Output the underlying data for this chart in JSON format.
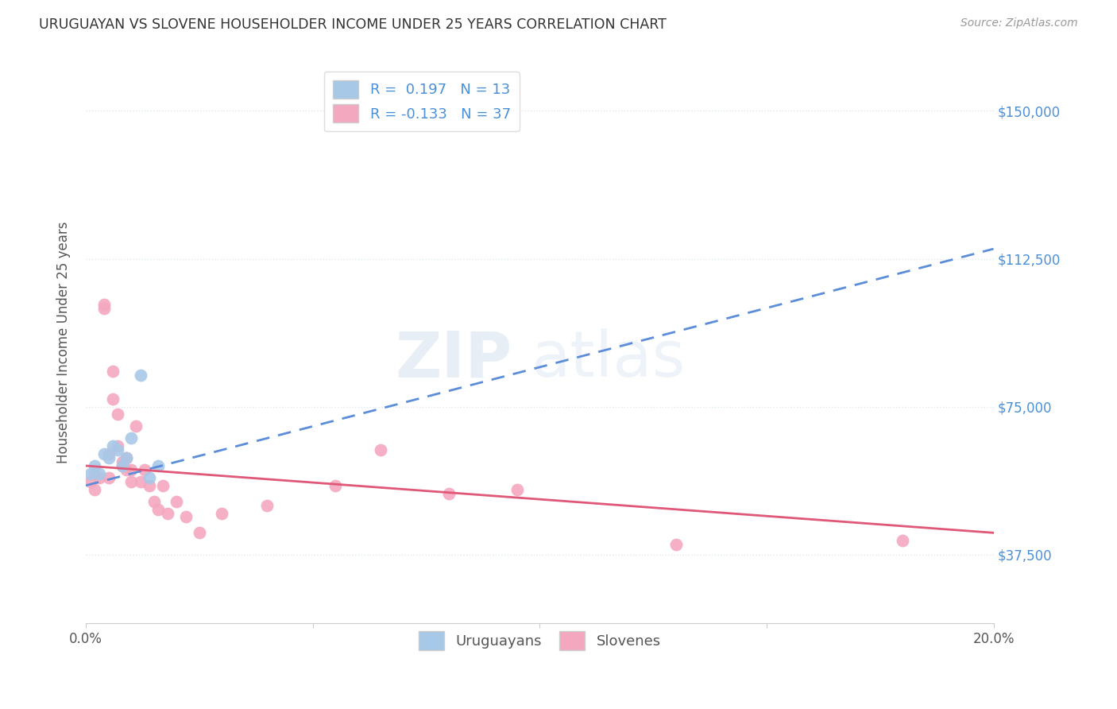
{
  "title": "URUGUAYAN VS SLOVENE HOUSEHOLDER INCOME UNDER 25 YEARS CORRELATION CHART",
  "source": "Source: ZipAtlas.com",
  "ylabel": "Householder Income Under 25 years",
  "x_min": 0.0,
  "x_max": 0.2,
  "y_min": 20000,
  "y_max": 162500,
  "x_ticks": [
    0.0,
    0.05,
    0.1,
    0.15,
    0.2
  ],
  "x_tick_labels": [
    "0.0%",
    "",
    "",
    "",
    "20.0%"
  ],
  "y_ticks": [
    37500,
    75000,
    112500,
    150000
  ],
  "y_tick_labels": [
    "$37,500",
    "$75,000",
    "$112,500",
    "$150,000"
  ],
  "r_uruguayan": 0.197,
  "n_uruguayan": 13,
  "r_slovene": -0.133,
  "n_slovene": 37,
  "color_uruguayan": "#a8c8e8",
  "color_slovene": "#f4a8c0",
  "line_color_uruguayan": "#5b8dd9",
  "line_color_slovene": "#e05878",
  "tick_color": "#4a90d9",
  "grid_color": "#dde8f0",
  "background_color": "#ffffff",
  "watermark_zip": "ZIP",
  "watermark_atlas": "atlas",
  "uruguayan_x": [
    0.001,
    0.002,
    0.003,
    0.004,
    0.005,
    0.006,
    0.007,
    0.008,
    0.009,
    0.01,
    0.012,
    0.014,
    0.016
  ],
  "uruguayan_y": [
    58000,
    60000,
    58000,
    63000,
    62000,
    65000,
    64000,
    60000,
    62000,
    67000,
    83000,
    57000,
    60000
  ],
  "slovene_x": [
    0.001,
    0.002,
    0.002,
    0.003,
    0.004,
    0.004,
    0.005,
    0.005,
    0.006,
    0.006,
    0.007,
    0.007,
    0.008,
    0.008,
    0.009,
    0.009,
    0.01,
    0.01,
    0.011,
    0.012,
    0.013,
    0.014,
    0.015,
    0.016,
    0.017,
    0.018,
    0.02,
    0.022,
    0.025,
    0.03,
    0.04,
    0.055,
    0.065,
    0.08,
    0.095,
    0.13,
    0.18
  ],
  "slovene_y": [
    56000,
    58000,
    54000,
    57000,
    100000,
    101000,
    63000,
    57000,
    84000,
    77000,
    65000,
    73000,
    61000,
    60000,
    62000,
    59000,
    59000,
    56000,
    70000,
    56000,
    59000,
    55000,
    51000,
    49000,
    55000,
    48000,
    51000,
    47000,
    43000,
    48000,
    50000,
    55000,
    64000,
    53000,
    54000,
    40000,
    41000
  ],
  "trend_u_x0": 0.0,
  "trend_u_y0": 55000,
  "trend_u_x1": 0.2,
  "trend_u_y1": 115000,
  "trend_s_x0": 0.0,
  "trend_s_y0": 60000,
  "trend_s_x1": 0.2,
  "trend_s_y1": 43000
}
